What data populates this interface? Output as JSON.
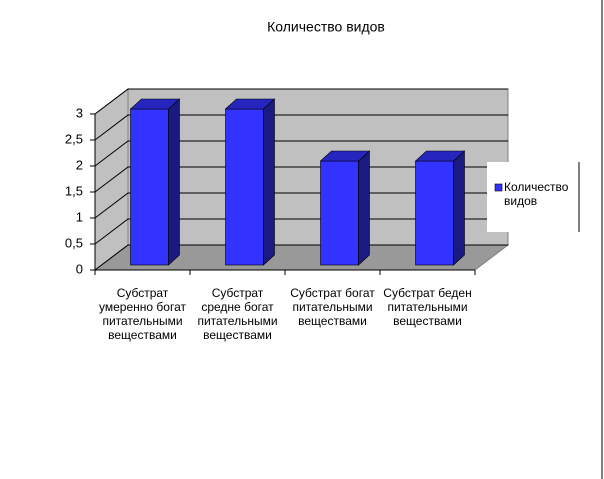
{
  "chart_data": {
    "type": "bar3d",
    "title": "Количество видов",
    "categories": [
      "Субстрат умеренно богат питательными веществами",
      "Субстрат средне богат питательными веществами",
      "Субстрат богат питательными веществами",
      "Субстрат беден питательными веществами"
    ],
    "series": [
      {
        "name": "Количество видов",
        "color": "#3333ff",
        "values": [
          3,
          3,
          2,
          2
        ]
      }
    ],
    "ylim": [
      0,
      3
    ],
    "yticks": [
      0,
      {
        "value": 0.5,
        "label": "0,5"
      },
      1,
      {
        "value": 1.5,
        "label": "1,5"
      },
      2,
      {
        "value": 2.5,
        "label": "2,5"
      },
      3
    ],
    "grid": true,
    "legend": "right"
  }
}
